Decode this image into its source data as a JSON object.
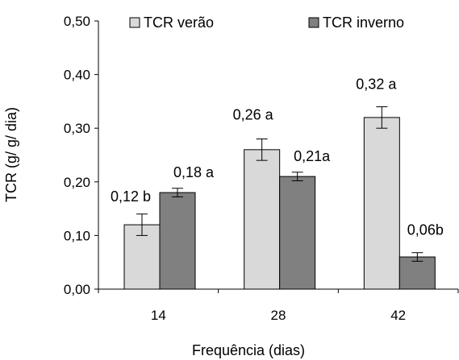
{
  "chart_data": {
    "type": "bar",
    "categories": [
      "14",
      "28",
      "42"
    ],
    "series": [
      {
        "name": "TCR verão",
        "color": "#d9d9d9",
        "values": [
          0.12,
          0.26,
          0.32
        ],
        "errors": [
          0.02,
          0.02,
          0.02
        ],
        "labels": [
          "0,12 b",
          "0,26 a",
          "0,32 a"
        ]
      },
      {
        "name": "TCR inverno",
        "color": "#808080",
        "values": [
          0.18,
          0.21,
          0.06
        ],
        "errors": [
          0.008,
          0.008,
          0.008
        ],
        "labels": [
          "0,18 a",
          "0,21a",
          "0,06b"
        ]
      }
    ],
    "xlabel": "Frequência (dias)",
    "ylabel": "TCR (g/ g/ dia)",
    "ylim": [
      0,
      0.5
    ],
    "yticks": [
      0.0,
      0.1,
      0.2,
      0.3,
      0.4,
      0.5
    ],
    "ytick_labels": [
      "0,00",
      "0,10",
      "0,20",
      "0,30",
      "0,40",
      "0,50"
    ],
    "legend_position": "top",
    "grid": false
  }
}
